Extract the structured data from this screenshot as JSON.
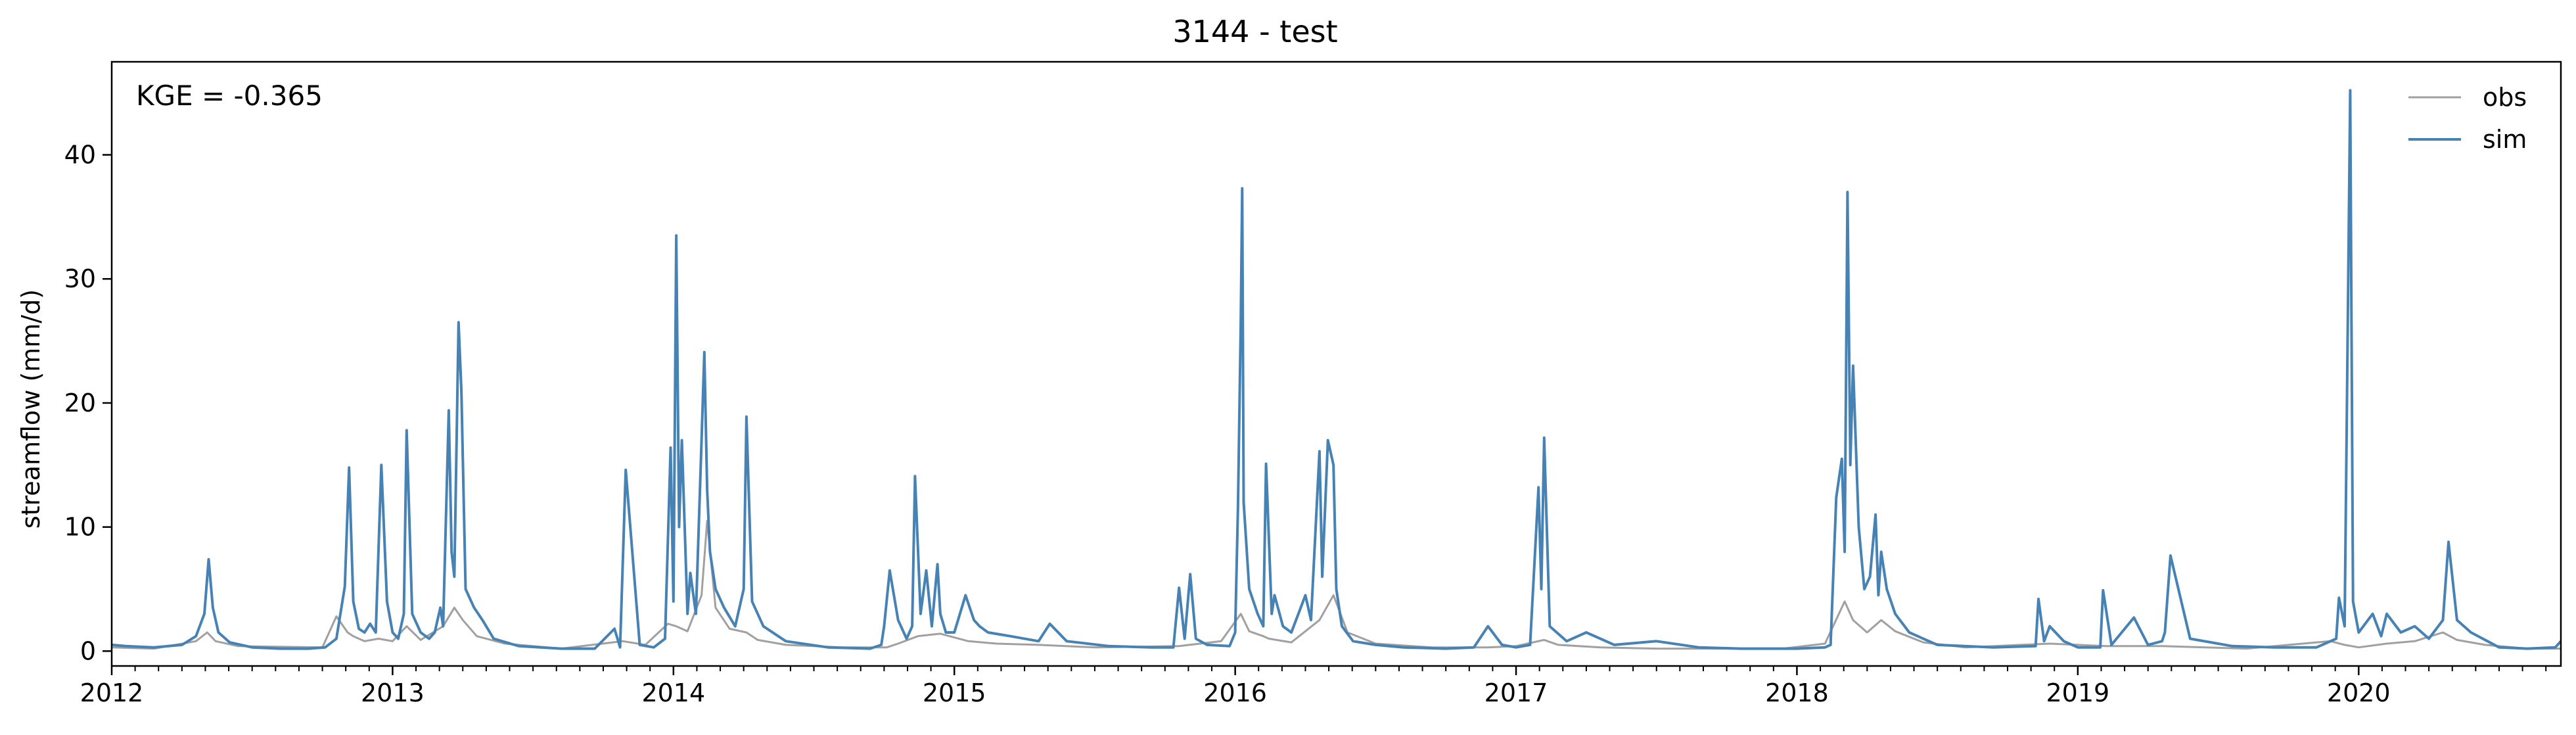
{
  "chart_data": {
    "type": "line",
    "title": "3144 - test",
    "xlabel": "",
    "ylabel": "streamflow (mm/d)",
    "annotation": "KGE = -0.365",
    "legend_position": "top-right",
    "grid": false,
    "xlim": [
      2012.0,
      2020.72
    ],
    "ylim": [
      -1.2,
      47.5
    ],
    "xticks": [
      2012,
      2013,
      2014,
      2015,
      2016,
      2017,
      2018,
      2019,
      2020
    ],
    "xtick_labels": [
      "2012",
      "2013",
      "2014",
      "2015",
      "2016",
      "2017",
      "2018",
      "2019",
      "2020"
    ],
    "yticks": [
      0,
      10,
      20,
      30,
      40
    ],
    "ytick_labels": [
      "0",
      "10",
      "20",
      "30",
      "40"
    ],
    "series": [
      {
        "name": "obs",
        "color": "#a0a0a0",
        "x": [
          2012.0,
          2012.15,
          2012.3,
          2012.34,
          2012.37,
          2012.45,
          2012.75,
          2012.8,
          2012.84,
          2012.86,
          2012.9,
          2012.95,
          2013.0,
          2013.05,
          2013.1,
          2013.18,
          2013.22,
          2013.25,
          2013.3,
          2013.4,
          2013.6,
          2013.82,
          2013.9,
          2013.98,
          2014.01,
          2014.05,
          2014.1,
          2014.12,
          2014.15,
          2014.2,
          2014.26,
          2014.3,
          2014.4,
          2014.6,
          2014.76,
          2014.8,
          2014.87,
          2014.95,
          2015.05,
          2015.15,
          2015.3,
          2015.5,
          2015.8,
          2015.95,
          2016.02,
          2016.05,
          2016.1,
          2016.12,
          2016.2,
          2016.3,
          2016.35,
          2016.4,
          2016.5,
          2016.7,
          2016.9,
          2017.0,
          2017.1,
          2017.15,
          2017.3,
          2017.5,
          2017.8,
          2017.95,
          2018.1,
          2018.17,
          2018.2,
          2018.25,
          2018.3,
          2018.35,
          2018.45,
          2018.6,
          2018.9,
          2019.1,
          2019.3,
          2019.6,
          2019.9,
          2019.95,
          2020.0,
          2020.1,
          2020.2,
          2020.3,
          2020.35,
          2020.45,
          2020.6,
          2020.72
        ],
        "y": [
          0.3,
          0.2,
          0.8,
          1.5,
          0.8,
          0.4,
          0.3,
          2.8,
          1.5,
          1.2,
          0.8,
          1.0,
          0.8,
          2.0,
          0.9,
          2.0,
          3.5,
          2.5,
          1.2,
          0.6,
          0.2,
          0.8,
          0.5,
          2.2,
          2.0,
          1.6,
          4.5,
          10.5,
          3.5,
          1.8,
          1.5,
          0.9,
          0.5,
          0.3,
          0.3,
          0.6,
          1.2,
          1.4,
          0.8,
          0.6,
          0.5,
          0.3,
          0.4,
          0.8,
          3.0,
          1.6,
          1.2,
          1.0,
          0.7,
          2.5,
          4.5,
          1.5,
          0.6,
          0.3,
          0.3,
          0.4,
          0.9,
          0.5,
          0.3,
          0.2,
          0.2,
          0.2,
          0.6,
          4.0,
          2.5,
          1.5,
          2.5,
          1.6,
          0.7,
          0.3,
          0.6,
          0.4,
          0.4,
          0.2,
          0.8,
          0.5,
          0.3,
          0.6,
          0.8,
          1.5,
          0.9,
          0.5,
          0.2,
          0.2
        ]
      },
      {
        "name": "sim",
        "color": "#4682b4",
        "x": [
          2012.0,
          2012.05,
          2012.15,
          2012.25,
          2012.3,
          2012.33,
          2012.345,
          2012.36,
          2012.38,
          2012.42,
          2012.5,
          2012.6,
          2012.7,
          2012.76,
          2012.8,
          2012.83,
          2012.845,
          2012.86,
          2012.88,
          2012.9,
          2012.92,
          2012.94,
          2012.96,
          2012.98,
          2013.0,
          2013.02,
          2013.04,
          2013.05,
          2013.07,
          2013.1,
          2013.13,
          2013.15,
          2013.17,
          2013.18,
          2013.2,
          2013.21,
          2013.22,
          2013.235,
          2013.245,
          2013.26,
          2013.29,
          2013.32,
          2013.36,
          2013.45,
          2013.6,
          2013.72,
          2013.79,
          2013.81,
          2013.83,
          2013.88,
          2013.93,
          2013.97,
          2013.99,
          2014.0,
          2014.01,
          2014.02,
          2014.03,
          2014.05,
          2014.06,
          2014.08,
          2014.1,
          2014.11,
          2014.12,
          2014.13,
          2014.15,
          2014.18,
          2014.22,
          2014.25,
          2014.26,
          2014.28,
          2014.32,
          2014.4,
          2014.55,
          2014.7,
          2014.74,
          2014.75,
          2014.77,
          2014.8,
          2014.83,
          2014.85,
          2014.86,
          2014.88,
          2014.9,
          2014.92,
          2014.94,
          2014.95,
          2014.97,
          2015.0,
          2015.04,
          2015.07,
          2015.09,
          2015.12,
          2015.2,
          2015.3,
          2015.34,
          2015.4,
          2015.55,
          2015.7,
          2015.78,
          2015.8,
          2015.82,
          2015.84,
          2015.86,
          2015.9,
          2015.98,
          2016.0,
          2016.01,
          2016.02,
          2016.025,
          2016.03,
          2016.05,
          2016.08,
          2016.1,
          2016.11,
          2016.13,
          2016.14,
          2016.17,
          2016.2,
          2016.25,
          2016.27,
          2016.3,
          2016.31,
          2016.33,
          2016.35,
          2016.36,
          2016.38,
          2016.42,
          2016.5,
          2016.6,
          2016.75,
          2016.85,
          2016.9,
          2016.95,
          2017.0,
          2017.05,
          2017.08,
          2017.09,
          2017.1,
          2017.12,
          2017.18,
          2017.25,
          2017.35,
          2017.5,
          2017.65,
          2017.8,
          2017.95,
          2018.0,
          2018.1,
          2018.12,
          2018.14,
          2018.16,
          2018.17,
          2018.18,
          2018.19,
          2018.2,
          2018.22,
          2018.24,
          2018.26,
          2018.28,
          2018.29,
          2018.3,
          2018.32,
          2018.35,
          2018.4,
          2018.5,
          2018.7,
          2018.85,
          2018.86,
          2018.88,
          2018.9,
          2018.95,
          2019.0,
          2019.08,
          2019.09,
          2019.12,
          2019.2,
          2019.25,
          2019.3,
          2019.31,
          2019.33,
          2019.4,
          2019.55,
          2019.7,
          2019.85,
          2019.92,
          2019.93,
          2019.95,
          2019.97,
          2019.98,
          2020.0,
          2020.05,
          2020.08,
          2020.1,
          2020.15,
          2020.2,
          2020.25,
          2020.3,
          2020.32,
          2020.35,
          2020.4,
          2020.5,
          2020.6,
          2020.7,
          2020.72
        ],
        "y": [
          0.5,
          0.4,
          0.3,
          0.5,
          1.2,
          3.0,
          7.4,
          3.5,
          1.5,
          0.7,
          0.3,
          0.2,
          0.2,
          0.3,
          1.0,
          5.2,
          14.8,
          4.0,
          1.8,
          1.5,
          2.2,
          1.5,
          15.0,
          4.0,
          1.5,
          1.0,
          3.0,
          17.8,
          3.0,
          1.5,
          1.0,
          1.5,
          3.5,
          2.0,
          19.4,
          8.0,
          6.0,
          26.5,
          21.0,
          5.0,
          3.5,
          2.5,
          1.0,
          0.4,
          0.2,
          0.2,
          1.8,
          0.3,
          14.6,
          0.5,
          0.3,
          1.0,
          16.4,
          4.0,
          33.5,
          10.0,
          17.0,
          3.0,
          6.3,
          3.0,
          17.0,
          24.1,
          13.0,
          8.0,
          5.0,
          3.5,
          2.0,
          5.0,
          18.9,
          4.0,
          2.0,
          0.8,
          0.3,
          0.2,
          0.5,
          2.0,
          6.5,
          2.5,
          1.0,
          2.0,
          14.1,
          3.0,
          6.5,
          2.0,
          7.0,
          3.0,
          1.5,
          1.5,
          4.5,
          2.5,
          2.0,
          1.5,
          1.2,
          0.8,
          2.2,
          0.8,
          0.4,
          0.3,
          0.3,
          5.1,
          1.0,
          6.2,
          1.0,
          0.5,
          0.4,
          1.5,
          11.7,
          26.8,
          37.3,
          12.0,
          5.0,
          3.0,
          2.0,
          15.1,
          3.0,
          4.5,
          2.0,
          1.5,
          4.5,
          2.5,
          16.1,
          6.0,
          17.0,
          15.0,
          5.0,
          2.0,
          0.8,
          0.5,
          0.3,
          0.2,
          0.3,
          2.0,
          0.5,
          0.3,
          0.5,
          13.2,
          5.0,
          17.2,
          2.0,
          0.8,
          1.5,
          0.5,
          0.8,
          0.3,
          0.2,
          0.2,
          0.2,
          0.3,
          0.5,
          12.4,
          15.5,
          8.0,
          37.0,
          15.0,
          23.0,
          10.0,
          5.0,
          6.0,
          11.0,
          4.5,
          8.0,
          5.0,
          3.0,
          1.5,
          0.5,
          0.3,
          0.4,
          4.2,
          0.8,
          2.0,
          0.8,
          0.3,
          0.3,
          4.9,
          0.5,
          2.7,
          0.5,
          0.8,
          1.5,
          7.7,
          1.0,
          0.4,
          0.3,
          0.3,
          1.0,
          4.3,
          2.0,
          45.2,
          4.0,
          1.5,
          3.0,
          1.2,
          3.0,
          1.5,
          2.0,
          1.0,
          2.5,
          8.8,
          2.5,
          1.5,
          0.3,
          0.2,
          0.3,
          0.8
        ]
      }
    ]
  }
}
